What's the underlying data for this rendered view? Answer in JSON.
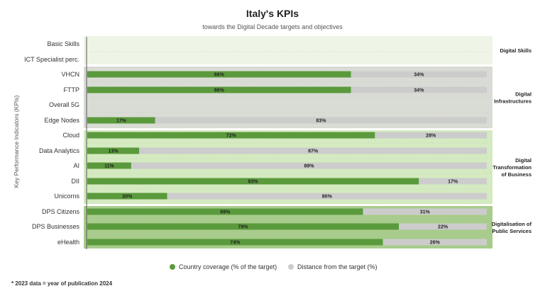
{
  "chart_data": {
    "type": "bar",
    "orientation": "horizontal",
    "stacked": true,
    "title": "Italy's KPIs",
    "subtitle": "towards the Digital Decade targets and objectives",
    "ylabel": "Key Performance Indicators (KPIs)",
    "xlim": [
      0,
      100
    ],
    "categories": [
      "Basic Skills",
      "ICT Specialist perc.",
      "VHCN",
      "FTTP",
      "Overall 5G",
      "Edge Nodes",
      "Cloud",
      "Data Analytics",
      "AI",
      "DII",
      "Unicorns",
      "DPS Citizens",
      "DPS Businesses",
      "eHealth"
    ],
    "series": [
      {
        "name": "Country coverage (% of the target)",
        "color": "#5a9a3c",
        "values": [
          null,
          null,
          66,
          66,
          null,
          17,
          72,
          13,
          11,
          83,
          20,
          69,
          78,
          74
        ]
      },
      {
        "name": "Distance from the target (%)",
        "color": "#cccccc",
        "values": [
          null,
          null,
          34,
          34,
          null,
          83,
          28,
          87,
          89,
          17,
          80,
          31,
          22,
          26
        ]
      }
    ],
    "groups": [
      {
        "label": [
          "Digital Skills"
        ],
        "categories": [
          "Basic Skills",
          "ICT Specialist perc."
        ],
        "color": "#eef5e6"
      },
      {
        "label": [
          "Digital",
          "Infrastructures"
        ],
        "categories": [
          "VHCN",
          "FTTP",
          "Overall 5G",
          "Edge Nodes"
        ],
        "color": "#d9dcd4"
      },
      {
        "label": [
          "Digital",
          "Transformation",
          "of Business"
        ],
        "categories": [
          "Cloud",
          "Data Analytics",
          "AI",
          "DII",
          "Unicorns"
        ],
        "color": "#d4eac0"
      },
      {
        "label": [
          "Digitalisation of",
          "Public Services"
        ],
        "categories": [
          "DPS Citizens",
          "DPS Businesses",
          "eHealth"
        ],
        "color": "#a8cc8c"
      }
    ],
    "legend_position": "bottom"
  },
  "footnote": "* 2023 data = year of publication 2024"
}
